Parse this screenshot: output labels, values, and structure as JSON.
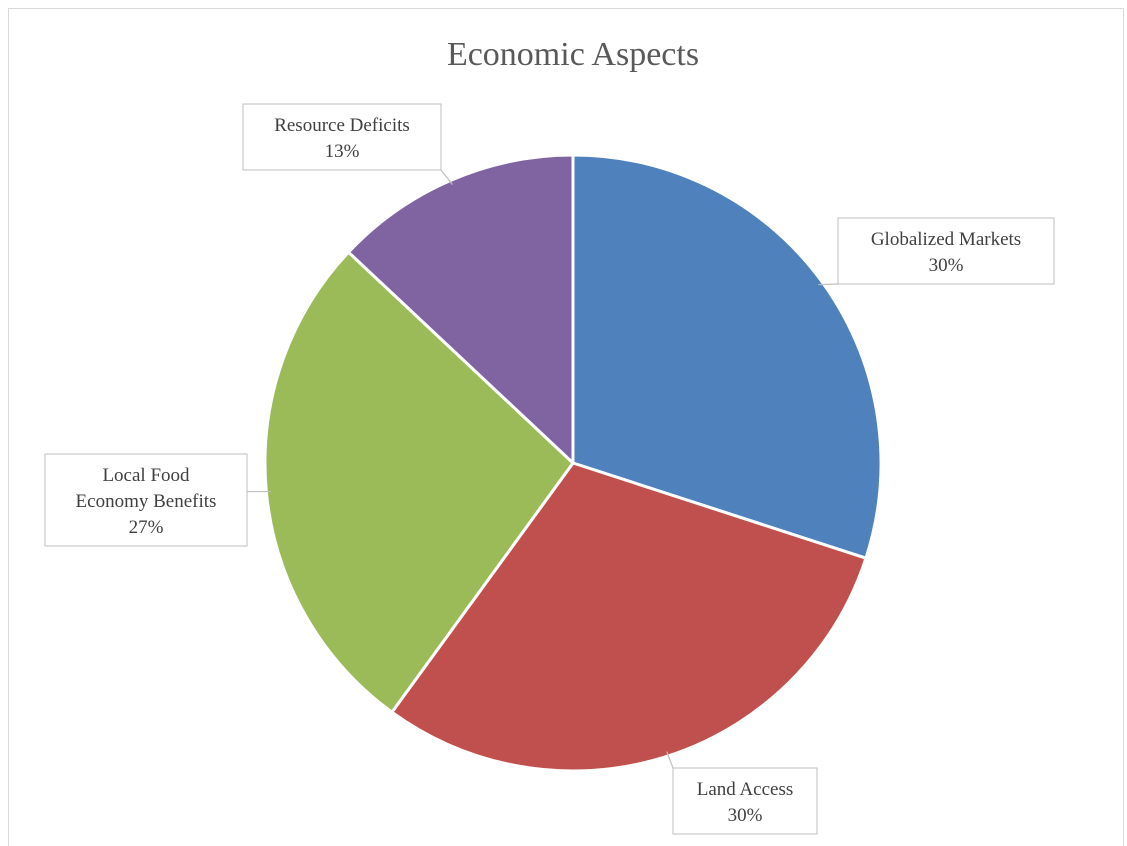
{
  "chart_data": {
    "type": "pie",
    "title": "Economic Aspects",
    "categories": [
      "Globalized Markets",
      "Land Access",
      "Local Food Economy Benefits",
      "Resource Deficits"
    ],
    "values": [
      30,
      30,
      27,
      13
    ],
    "value_labels": [
      "30%",
      "30%",
      "27%",
      "13%"
    ],
    "colors": [
      "#4f81bd",
      "#c0504d",
      "#9bbb59",
      "#8064a2"
    ],
    "start": "12 o'clock",
    "direction": "clockwise",
    "data_labels": "callouts outside slices",
    "legend": "none"
  }
}
